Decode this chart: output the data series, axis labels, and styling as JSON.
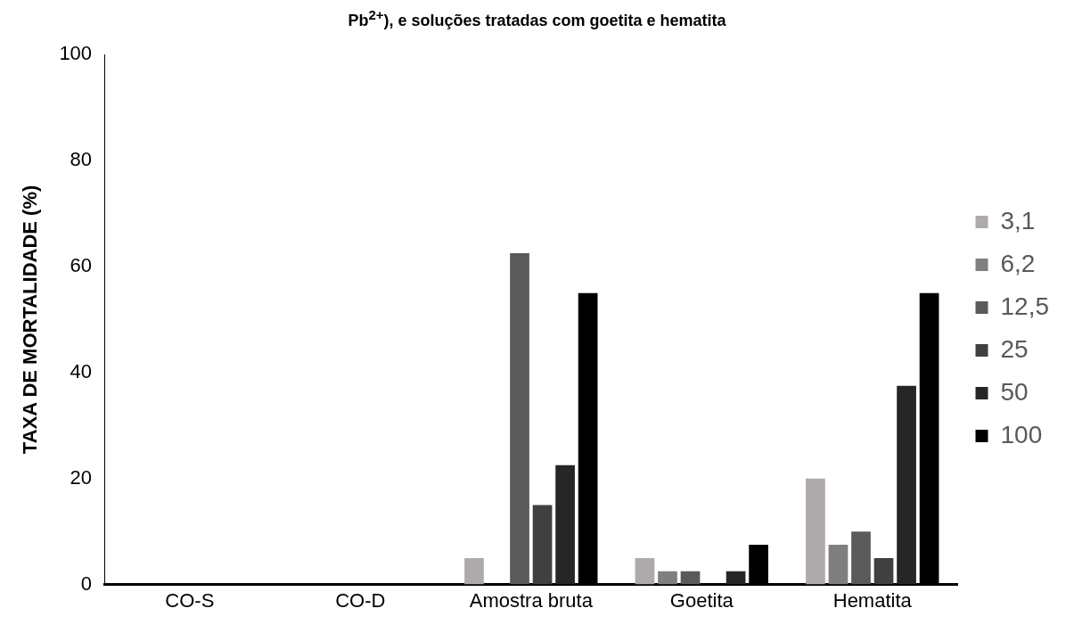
{
  "chart_data": {
    "type": "bar",
    "title": "Pb$^{2+}$), e soluções tratadas com goetita e hematita",
    "ylabel": "TAXA DE MORTALIDADE (%)",
    "categories": [
      "CO-S",
      "CO-D",
      "Amostra bruta",
      "Goetita",
      "Hematita"
    ],
    "series": [
      {
        "name": "3,1",
        "color": "#aeaaaa",
        "values": [
          0,
          0,
          5,
          5,
          20
        ]
      },
      {
        "name": "6,2",
        "color": "#7f7f7f",
        "values": [
          0,
          0,
          0,
          2.5,
          7.5
        ]
      },
      {
        "name": "12,5",
        "color": "#5a5a5a",
        "values": [
          0,
          0,
          62.5,
          2.5,
          10
        ]
      },
      {
        "name": "25",
        "color": "#404040",
        "values": [
          0,
          0,
          15,
          0,
          5
        ]
      },
      {
        "name": "50",
        "color": "#262626",
        "values": [
          0,
          0,
          22.5,
          2.5,
          37.5
        ]
      },
      {
        "name": "100",
        "color": "#000000",
        "values": [
          0,
          0,
          55,
          7.5,
          55
        ]
      }
    ],
    "ylim": [
      0,
      100
    ],
    "yticks": [
      0,
      20,
      40,
      60,
      80,
      100
    ],
    "grid": false,
    "legend": "right"
  }
}
